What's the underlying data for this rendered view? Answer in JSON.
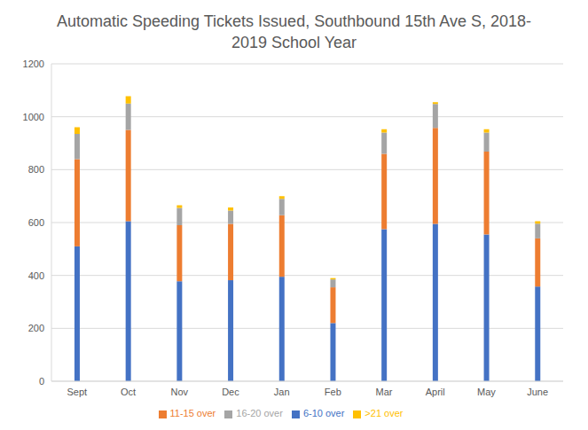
{
  "chart_data": {
    "type": "bar",
    "title": "Automatic Speeding Tickets Issued, Southbound 15th Ave S, 2018-2019 School Year",
    "categories": [
      "Sept",
      "Oct",
      "Nov",
      "Dec",
      "Jan",
      "Feb",
      "Mar",
      "April",
      "May",
      "June"
    ],
    "series": [
      {
        "name": "6-10 over",
        "color": "#4472c4",
        "values": [
          510,
          605,
          378,
          382,
          395,
          220,
          575,
          595,
          555,
          358
        ]
      },
      {
        "name": "11-15 over",
        "color": "#ed7d31",
        "values": [
          330,
          345,
          212,
          213,
          233,
          135,
          285,
          363,
          313,
          182
        ]
      },
      {
        "name": "16-20 over",
        "color": "#a5a5a5",
        "values": [
          95,
          100,
          65,
          50,
          62,
          30,
          80,
          90,
          72,
          56
        ]
      },
      {
        "name": ">21 over",
        "color": "#ffc000",
        "values": [
          25,
          28,
          10,
          12,
          10,
          5,
          13,
          7,
          13,
          9
        ]
      }
    ],
    "ylim": [
      0,
      1200
    ],
    "yticks": [
      0,
      200,
      400,
      600,
      800,
      1000,
      1200
    ],
    "grid": true,
    "stacked": true,
    "legend": "bottom"
  }
}
